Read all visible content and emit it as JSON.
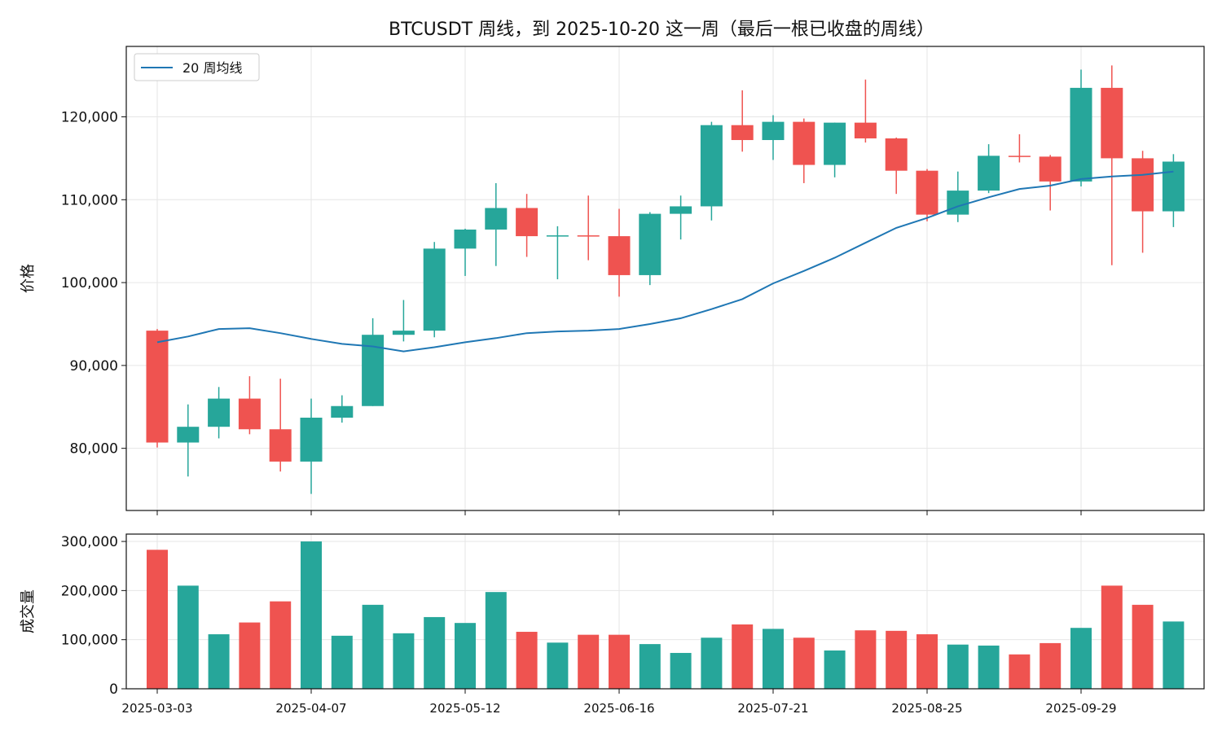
{
  "chart_data": {
    "type": "candlestick",
    "title": "BTCUSDT 周线，到 2025-10-20 这一周（最后一根已收盘的周线）",
    "price_panel": {
      "ylabel": "价格",
      "ylim": [
        72500,
        128500
      ],
      "yticks": [
        80000,
        90000,
        100000,
        110000,
        120000
      ],
      "ytick_labels": [
        "80,000",
        "90,000",
        "100,000",
        "110,000",
        "120,000"
      ],
      "legend": {
        "label": "20 周均线",
        "placement": "top-left"
      },
      "grid": true
    },
    "volume_panel": {
      "ylabel": "成交量",
      "ylim": [
        0,
        315000
      ],
      "yticks": [
        0,
        100000,
        200000,
        300000
      ],
      "ytick_labels": [
        "0",
        "100,000",
        "200,000",
        "300,000"
      ],
      "grid": true
    },
    "x_tick_labels": [
      "2025-03-03",
      "2025-04-07",
      "2025-05-12",
      "2025-06-16",
      "2025-07-21",
      "2025-08-25",
      "2025-09-29"
    ],
    "x_tick_indices": [
      0,
      5,
      10,
      15,
      20,
      25,
      30
    ],
    "candles": [
      {
        "week": "2025-03-03",
        "open": 94200,
        "high": 94400,
        "low": 80100,
        "close": 80700,
        "volume": 283000
      },
      {
        "week": "2025-03-10",
        "open": 80700,
        "high": 85300,
        "low": 76600,
        "close": 82600,
        "volume": 210000
      },
      {
        "week": "2025-03-17",
        "open": 82600,
        "high": 87400,
        "low": 81200,
        "close": 86000,
        "volume": 111000
      },
      {
        "week": "2025-03-24",
        "open": 86000,
        "high": 88700,
        "low": 81700,
        "close": 82300,
        "volume": 135000
      },
      {
        "week": "2025-03-31",
        "open": 82300,
        "high": 88400,
        "low": 77200,
        "close": 78400,
        "volume": 178000
      },
      {
        "week": "2025-04-07",
        "open": 78400,
        "high": 86000,
        "low": 74500,
        "close": 83700,
        "volume": 300000
      },
      {
        "week": "2025-04-14",
        "open": 83700,
        "high": 86400,
        "low": 83100,
        "close": 85100,
        "volume": 108000
      },
      {
        "week": "2025-04-21",
        "open": 85100,
        "high": 95700,
        "low": 85100,
        "close": 93700,
        "volume": 171000
      },
      {
        "week": "2025-04-28",
        "open": 93700,
        "high": 97900,
        "low": 92900,
        "close": 94200,
        "volume": 113000
      },
      {
        "week": "2025-05-05",
        "open": 94200,
        "high": 104900,
        "low": 93400,
        "close": 104100,
        "volume": 146000
      },
      {
        "week": "2025-05-12",
        "open": 104100,
        "high": 106500,
        "low": 100800,
        "close": 106400,
        "volume": 134000
      },
      {
        "week": "2025-05-19",
        "open": 106400,
        "high": 112000,
        "low": 102000,
        "close": 109000,
        "volume": 197000
      },
      {
        "week": "2025-05-26",
        "open": 109000,
        "high": 110700,
        "low": 103100,
        "close": 105600,
        "volume": 116000
      },
      {
        "week": "2025-06-02",
        "open": 105600,
        "high": 106800,
        "low": 100400,
        "close": 105700,
        "volume": 94000
      },
      {
        "week": "2025-06-09",
        "open": 105700,
        "high": 110500,
        "low": 102700,
        "close": 105600,
        "volume": 110000
      },
      {
        "week": "2025-06-16",
        "open": 105600,
        "high": 108900,
        "low": 98300,
        "close": 100900,
        "volume": 110000
      },
      {
        "week": "2025-06-23",
        "open": 100900,
        "high": 108500,
        "low": 99700,
        "close": 108300,
        "volume": 91000
      },
      {
        "week": "2025-06-30",
        "open": 108300,
        "high": 110500,
        "low": 105200,
        "close": 109200,
        "volume": 73000
      },
      {
        "week": "2025-07-07",
        "open": 109200,
        "high": 119400,
        "low": 107500,
        "close": 119000,
        "volume": 104000
      },
      {
        "week": "2025-07-14",
        "open": 119000,
        "high": 123200,
        "low": 115800,
        "close": 117200,
        "volume": 131000
      },
      {
        "week": "2025-07-21",
        "open": 117200,
        "high": 120200,
        "low": 114800,
        "close": 119400,
        "volume": 122000
      },
      {
        "week": "2025-07-28",
        "open": 119400,
        "high": 119800,
        "low": 112000,
        "close": 114200,
        "volume": 104000
      },
      {
        "week": "2025-08-04",
        "open": 114200,
        "high": 119300,
        "low": 112700,
        "close": 119300,
        "volume": 78000
      },
      {
        "week": "2025-08-11",
        "open": 119300,
        "high": 124500,
        "low": 116900,
        "close": 117400,
        "volume": 119000
      },
      {
        "week": "2025-08-18",
        "open": 117400,
        "high": 117500,
        "low": 110700,
        "close": 113500,
        "volume": 118000
      },
      {
        "week": "2025-08-25",
        "open": 113500,
        "high": 113700,
        "low": 107400,
        "close": 108200,
        "volume": 111000
      },
      {
        "week": "2025-09-01",
        "open": 108200,
        "high": 113400,
        "low": 107300,
        "close": 111100,
        "volume": 90000
      },
      {
        "week": "2025-09-08",
        "open": 111100,
        "high": 116700,
        "low": 110800,
        "close": 115300,
        "volume": 88000
      },
      {
        "week": "2025-09-15",
        "open": 115300,
        "high": 117900,
        "low": 114500,
        "close": 115200,
        "volume": 70000
      },
      {
        "week": "2025-09-22",
        "open": 115200,
        "high": 115400,
        "low": 108700,
        "close": 112200,
        "volume": 93000
      },
      {
        "week": "2025-09-29",
        "open": 112200,
        "high": 125700,
        "low": 111600,
        "close": 123500,
        "volume": 124000
      },
      {
        "week": "2025-10-06",
        "open": 123500,
        "high": 126200,
        "low": 102100,
        "close": 115000,
        "volume": 210000
      },
      {
        "week": "2025-10-13",
        "open": 115000,
        "high": 115900,
        "low": 103600,
        "close": 108600,
        "volume": 171000
      },
      {
        "week": "2025-10-20",
        "open": 108600,
        "high": 115500,
        "low": 106700,
        "close": 114600,
        "volume": 137000
      }
    ],
    "ma20": [
      92800,
      93500,
      94400,
      94500,
      93900,
      93200,
      92600,
      92300,
      91700,
      92200,
      92800,
      93300,
      93900,
      94100,
      94200,
      94400,
      95000,
      95700,
      96800,
      98000,
      99900,
      101400,
      103000,
      104800,
      106600,
      107800,
      109200,
      110300,
      111300,
      111700,
      112500,
      112800,
      113000,
      113400
    ],
    "colors": {
      "up": "#26a69a",
      "down": "#ef5350",
      "ma_line": "#1f77b4",
      "grid": "#e6e6e6",
      "axis": "#111111"
    }
  }
}
